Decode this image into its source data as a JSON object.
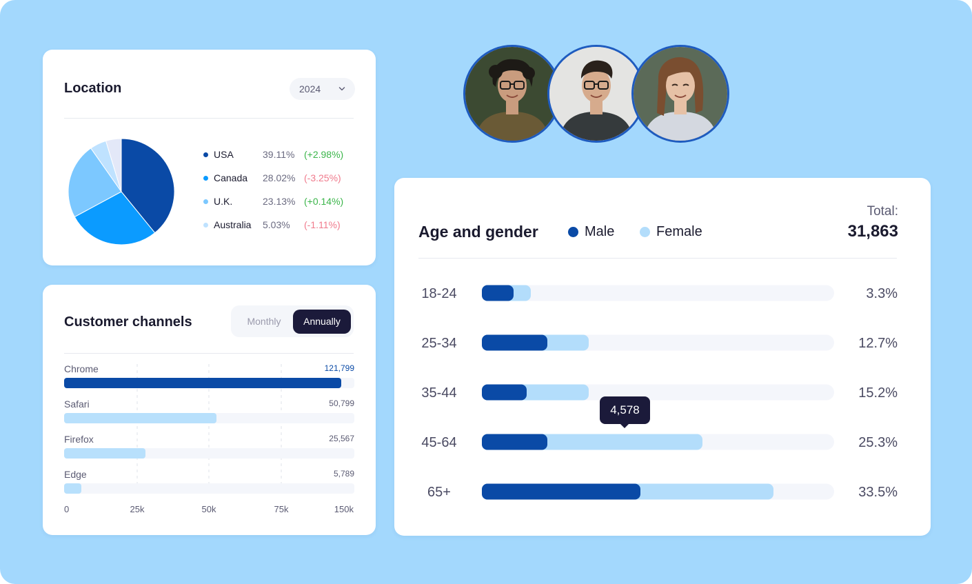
{
  "colors": {
    "background": "#a3d8fd",
    "usa": "#0a4aa6",
    "canada": "#0b9bff",
    "uk": "#7cc8ff",
    "australia": "#bfe2ff",
    "other": "#e3e8f8",
    "male": "#0a4aa6",
    "female": "#b3ddfb",
    "track": "#f4f6fb",
    "positive": "#3bb54a",
    "negative": "#f07a8c",
    "dark": "#1b1a3a"
  },
  "location": {
    "title": "Location",
    "year_select": {
      "value": "2024",
      "icon": "chevron-down-icon"
    },
    "chart_data": {
      "type": "pie",
      "slices": [
        {
          "label": "USA",
          "value": 39.11,
          "change": "(+2.98%)",
          "trend": "up"
        },
        {
          "label": "Canada",
          "value": 28.02,
          "change": "(-3.25%)",
          "trend": "down"
        },
        {
          "label": "U.K.",
          "value": 23.13,
          "change": "(+0.14%)",
          "trend": "up"
        },
        {
          "label": "Australia",
          "value": 5.03,
          "change": "(-1.11%)",
          "trend": "down"
        },
        {
          "label": "",
          "value": 4.71
        }
      ],
      "value_labels": [
        "39.11%",
        "28.02%",
        "23.13%",
        "5.03%"
      ],
      "legend_position": "right"
    }
  },
  "channels": {
    "title": "Customer channels",
    "toggle": {
      "options": [
        "Monthly",
        "Annually"
      ],
      "selected": "Annually"
    },
    "chart_data": {
      "type": "bar",
      "orientation": "horizontal",
      "categories": [
        "Chrome",
        "Safari",
        "Firefox",
        "Edge"
      ],
      "values": [
        121799,
        50799,
        25567,
        5789
      ],
      "value_labels": [
        "121,799",
        "50,799",
        "25,567",
        "5,789"
      ],
      "x_ticks": [
        "0",
        "25k",
        "50k",
        "75k",
        "150k"
      ],
      "grid": "vertical dashed",
      "fill_fraction": [
        0.955,
        0.525,
        0.28,
        0.06
      ]
    }
  },
  "avatars": [
    {
      "name": "avatar-person-1",
      "hair": "#1d1a16",
      "skin": "#c99c7e",
      "shirt": "#6a5a36",
      "bg": "#3c4a32",
      "glasses": true
    },
    {
      "name": "avatar-person-2",
      "hair": "#2a211b",
      "skin": "#d6ab8d",
      "shirt": "#353a3c",
      "bg": "#e4e4e2",
      "glasses": true
    },
    {
      "name": "avatar-person-3",
      "hair": "#7a4e30",
      "skin": "#e6c1a6",
      "shirt": "#d4d8e0",
      "bg": "#5b6a58",
      "glasses": false
    }
  ],
  "age_gender": {
    "title": "Age and gender",
    "legend": [
      {
        "label": "Male",
        "color_key": "male"
      },
      {
        "label": "Female",
        "color_key": "female"
      }
    ],
    "total_label": "Total:",
    "total_value": "31,863",
    "tooltip": {
      "value": "4,578",
      "category": "45-64"
    },
    "chart_data": {
      "type": "bar",
      "orientation": "horizontal",
      "stacked": true,
      "categories": [
        "18-24",
        "25-34",
        "35-44",
        "45-64",
        "65+"
      ],
      "series": [
        {
          "name": "Male",
          "fill_fraction": [
            0.09,
            0.186,
            0.127,
            0.186,
            0.45
          ]
        },
        {
          "name": "Female",
          "fill_fraction": [
            0.139,
            0.303,
            0.303,
            0.626,
            0.827
          ]
        }
      ],
      "percent_labels": [
        "3.3%",
        "12.7%",
        "15.2%",
        "25.3%",
        "33.5%"
      ]
    }
  }
}
